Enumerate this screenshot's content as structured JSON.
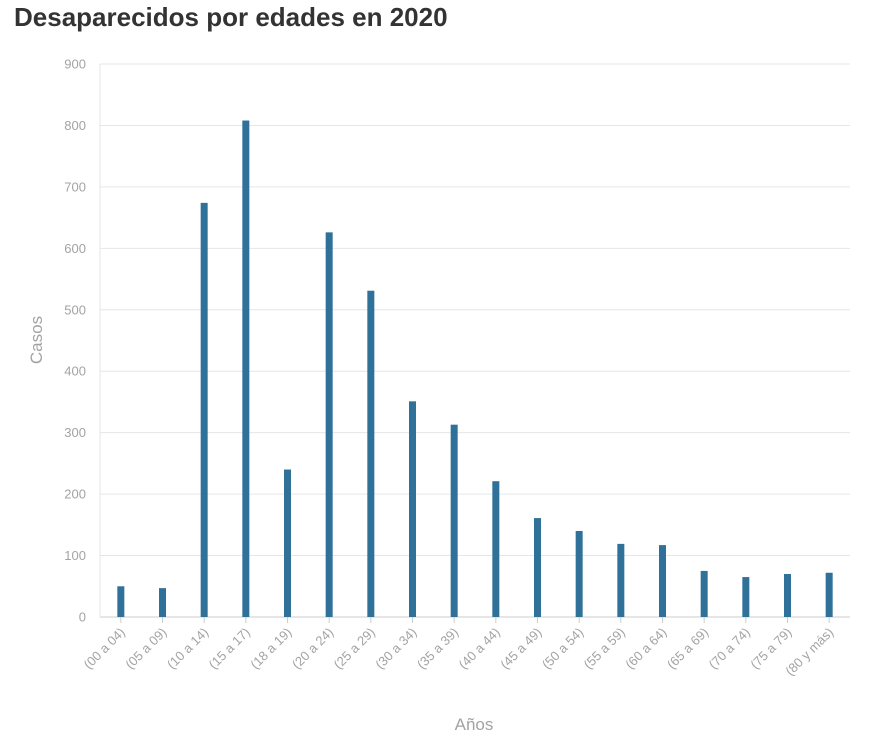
{
  "chart_data": {
    "type": "bar",
    "title": "Desaparecidos por edades en 2020",
    "xlabel": "Años",
    "ylabel": "Casos",
    "ylim": [
      0,
      900
    ],
    "yticks": [
      0,
      100,
      200,
      300,
      400,
      500,
      600,
      700,
      800,
      900
    ],
    "categories": [
      "(00 a 04)",
      "(05 a 09)",
      "(10 a 14)",
      "(15 a 17)",
      "(18 a 19)",
      "(20 a 24)",
      "(25 a 29)",
      "(30 a 34)",
      "(35 a 39)",
      "(40 a 44)",
      "(45 a 49)",
      "(50 a 54)",
      "(55 a 59)",
      "(60 a 64)",
      "(65 a 69)",
      "(70 a 74)",
      "(75 a 79)",
      "(80 y más)"
    ],
    "values": [
      50,
      47,
      674,
      808,
      240,
      626,
      531,
      351,
      313,
      221,
      161,
      140,
      119,
      117,
      75,
      65,
      70,
      72
    ],
    "grid": true,
    "bar_color": "#2f7199"
  }
}
